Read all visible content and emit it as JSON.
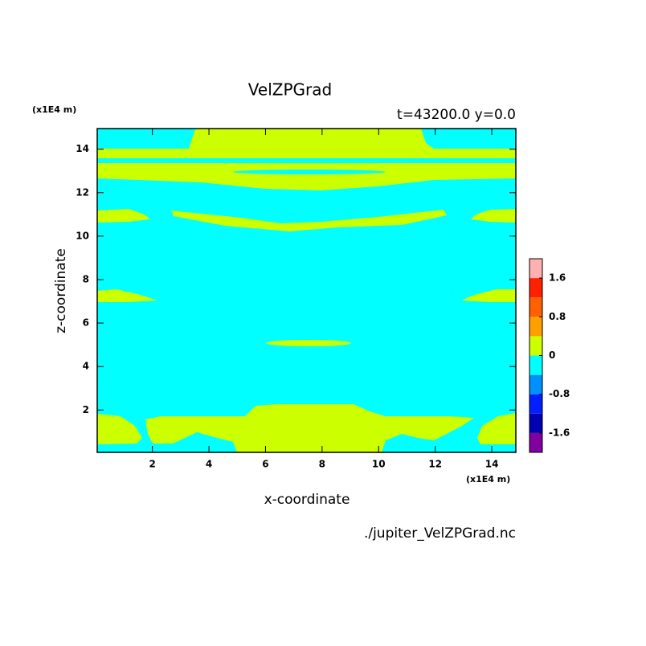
{
  "chart_data": {
    "type": "contour",
    "title": "VelZPGrad",
    "subtitle": "t=43200.0 y=0.0",
    "x_label": "x-coordinate",
    "y_label": "z-coordinate",
    "x_unit": "(x1E4 m)",
    "y_unit": "(x1E4 m)",
    "source": "./jupiter_VelZPGrad.nc",
    "xlim": [
      0.05,
      14.85
    ],
    "ylim": [
      0.05,
      14.95
    ],
    "xticks": [
      2,
      4,
      6,
      8,
      10,
      12,
      14
    ],
    "yticks": [
      2,
      4,
      6,
      8,
      10,
      12,
      14
    ],
    "colorbar": {
      "levels": [
        -2,
        -1.6,
        -1.2,
        -0.8,
        -0.4,
        0,
        0.4,
        0.8,
        1.2,
        1.6,
        2
      ],
      "colors": [
        "#8000a0",
        "#0000b0",
        "#0020ff",
        "#0090ff",
        "#00ffff",
        "#ccff00",
        "#ffa000",
        "#ff6000",
        "#ff2000",
        "#ffb0b0"
      ],
      "ticks": [
        -1.6,
        -0.8,
        0,
        0.8,
        1.6
      ]
    }
  }
}
